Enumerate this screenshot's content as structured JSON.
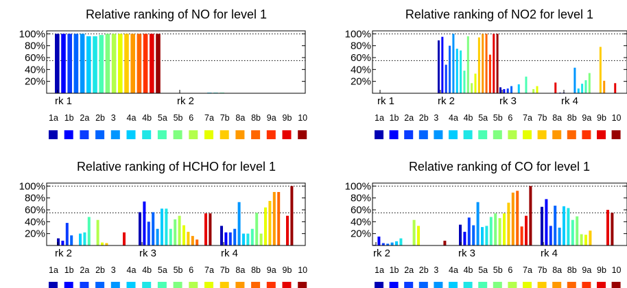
{
  "legend_labels": [
    "1a",
    "1b",
    "2a",
    "2b",
    "3",
    "4a",
    "4b",
    "5a",
    "5b",
    "6",
    "7a",
    "7b",
    "8a",
    "8b",
    "9a",
    "9b",
    "10"
  ],
  "series_colors": [
    "#0000b3",
    "#0000ff",
    "#0a3cff",
    "#0064ff",
    "#0096ff",
    "#00ccff",
    "#1ee6e6",
    "#4cffb3",
    "#80ff80",
    "#b3ff4c",
    "#e6ff00",
    "#ffcc00",
    "#ff9900",
    "#ff6600",
    "#ff3300",
    "#e60000",
    "#990000"
  ],
  "chart_data": [
    {
      "type": "bar",
      "title": "Relative ranking of NO for level 1",
      "ytick_labels": [
        "100%",
        "80%",
        "60%",
        "40%",
        "20%"
      ],
      "yticks": [
        100,
        80,
        60,
        40,
        20
      ],
      "ylim": [
        0,
        105
      ],
      "categories": [
        "rk 1",
        "rk 2"
      ],
      "dotted_gridlines": [
        100,
        55
      ],
      "values": [
        [
          100,
          0.5
        ],
        [
          100,
          0.5
        ],
        [
          100,
          0.5
        ],
        [
          100,
          0.5
        ],
        [
          100,
          0.5
        ],
        [
          96,
          1
        ],
        [
          96,
          1
        ],
        [
          98,
          1
        ],
        [
          100,
          0.5
        ],
        [
          100,
          0.5
        ],
        [
          100,
          0.5
        ],
        [
          100,
          0.5
        ],
        [
          100,
          0.5
        ],
        [
          100,
          0.5
        ],
        [
          100,
          0.5
        ],
        [
          100,
          0.5
        ],
        [
          100,
          0.5
        ]
      ]
    },
    {
      "type": "bar",
      "title": "Relative ranking of NO2 for level 1",
      "ytick_labels": [
        "100%",
        "80%",
        "60%",
        "40%",
        "20%"
      ],
      "yticks": [
        100,
        80,
        60,
        40,
        20
      ],
      "ylim": [
        0,
        105
      ],
      "categories": [
        "rk 1",
        "rk 2",
        "rk 3",
        "rk 4"
      ],
      "dotted_gridlines": [
        100,
        55
      ],
      "values": [
        [
          0,
          89,
          10,
          1
        ],
        [
          0,
          95,
          7,
          1
        ],
        [
          0,
          48,
          8,
          0
        ],
        [
          0,
          80,
          12,
          0
        ],
        [
          0,
          100,
          0,
          43
        ],
        [
          0,
          75,
          15,
          8
        ],
        [
          0,
          72,
          0,
          16
        ],
        [
          0,
          38,
          28,
          22
        ],
        [
          0,
          96,
          0,
          34
        ],
        [
          0,
          17,
          7,
          0
        ],
        [
          0,
          33,
          12,
          0
        ],
        [
          0,
          94,
          0,
          78
        ],
        [
          0,
          100,
          0,
          21
        ],
        [
          0,
          100,
          0,
          0
        ],
        [
          0,
          65,
          0,
          0
        ],
        [
          0,
          100,
          18,
          17
        ],
        [
          0,
          100,
          0,
          0
        ]
      ]
    },
    {
      "type": "bar",
      "title": "Relative ranking of HCHO for level 1",
      "ytick_labels": [
        "100%",
        "80%",
        "60%",
        "40%",
        "20%"
      ],
      "yticks": [
        100,
        80,
        60,
        40,
        20
      ],
      "ylim": [
        0,
        105
      ],
      "categories": [
        "rk 2",
        "rk 3",
        "rk 4"
      ],
      "dotted_gridlines": [
        100,
        55
      ],
      "values": [
        [
          12,
          56,
          33
        ],
        [
          8,
          74,
          22
        ],
        [
          38,
          40,
          22
        ],
        [
          17,
          56,
          28
        ],
        [
          0,
          28,
          73
        ],
        [
          20,
          62,
          20
        ],
        [
          22,
          62,
          20
        ],
        [
          48,
          28,
          28
        ],
        [
          0,
          44,
          55
        ],
        [
          43,
          50,
          20
        ],
        [
          5,
          34,
          64
        ],
        [
          4,
          23,
          75
        ],
        [
          0,
          16,
          90
        ],
        [
          0,
          10,
          90
        ],
        [
          0,
          0,
          0
        ],
        [
          22,
          54,
          50
        ],
        [
          0,
          54,
          100
        ]
      ]
    },
    {
      "type": "bar",
      "title": "Relative ranking of CO for level 1",
      "ytick_labels": [
        "100%",
        "80%",
        "60%",
        "40%",
        "20%"
      ],
      "yticks": [
        100,
        80,
        60,
        40,
        20
      ],
      "ylim": [
        0,
        105
      ],
      "categories": [
        "rk 2",
        "rk 3",
        "rk 4"
      ],
      "dotted_gridlines": [
        100,
        55
      ],
      "values": [
        [
          1,
          35,
          65
        ],
        [
          15,
          23,
          78
        ],
        [
          4,
          47,
          33
        ],
        [
          3,
          34,
          67
        ],
        [
          5,
          73,
          30
        ],
        [
          7,
          31,
          66
        ],
        [
          12,
          33,
          63
        ],
        [
          0,
          48,
          43
        ],
        [
          0,
          54,
          49
        ],
        [
          43,
          46,
          19
        ],
        [
          33,
          54,
          18
        ],
        [
          0,
          72,
          25
        ],
        [
          0,
          89,
          0
        ],
        [
          0,
          92,
          0
        ],
        [
          0,
          32,
          0
        ],
        [
          0,
          50,
          60
        ],
        [
          8,
          100,
          55
        ]
      ]
    }
  ]
}
